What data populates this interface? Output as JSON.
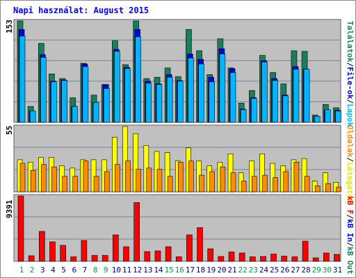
{
  "title": "Napi használat: August 2015",
  "colors": {
    "background": "#c0c0c0",
    "hits": "#1c7d5e",
    "files": "#0000d8",
    "pages": "#00b4ff",
    "visits": "#ffff00",
    "sites": "#ff8c00",
    "kbin": "#ff0000",
    "weekend_label": "#00a040",
    "weekday_label": "#000080"
  },
  "chart_data": [
    {
      "type": "bar",
      "panel": "top",
      "scale_max_label": "153",
      "right_label_parts": [
        "Találatok",
        "/",
        "File-ok",
        "/",
        "Lapok"
      ],
      "ylim": [
        0,
        153
      ],
      "categories": [
        "1",
        "2",
        "3",
        "4",
        "5",
        "6",
        "7",
        "8",
        "9",
        "10",
        "11",
        "12",
        "13",
        "14",
        "15",
        "16",
        "17",
        "18",
        "19",
        "20",
        "21",
        "22",
        "23",
        "24",
        "25",
        "26",
        "27",
        "28",
        "29",
        "30",
        "31"
      ],
      "weekend_days": [
        "1",
        "2",
        "8",
        "9",
        "15",
        "16",
        "22",
        "23",
        "29",
        "30"
      ],
      "series": [
        {
          "name": "Találatok",
          "values": [
            153,
            24,
            119,
            73,
            66,
            37,
            89,
            41,
            57,
            123,
            87,
            153,
            66,
            68,
            82,
            69,
            140,
            108,
            72,
            126,
            82,
            29,
            48,
            101,
            75,
            58,
            108,
            107,
            11,
            27,
            22
          ]
        },
        {
          "name": "File-ok",
          "values": [
            140,
            17,
            102,
            62,
            64,
            24,
            88,
            30,
            57,
            110,
            83,
            140,
            62,
            58,
            72,
            63,
            103,
            95,
            68,
            111,
            81,
            20,
            37,
            93,
            66,
            41,
            84,
            80,
            9,
            19,
            18
          ]
        },
        {
          "name": "Lapok",
          "values": [
            130,
            17,
            98,
            61,
            63,
            24,
            84,
            30,
            51,
            107,
            81,
            129,
            59,
            57,
            68,
            62,
            97,
            88,
            61,
            103,
            75,
            19,
            36,
            91,
            63,
            40,
            80,
            80,
            9,
            19,
            17
          ]
        }
      ]
    },
    {
      "type": "bar",
      "panel": "middle",
      "scale_max_label": "55",
      "right_label_parts": [
        "Oldalak",
        "/",
        "Látogatók"
      ],
      "ylim": [
        0,
        55
      ],
      "categories": [
        "1",
        "2",
        "3",
        "4",
        "5",
        "6",
        "7",
        "8",
        "9",
        "10",
        "11",
        "12",
        "13",
        "14",
        "15",
        "16",
        "17",
        "18",
        "19",
        "20",
        "21",
        "22",
        "23",
        "24",
        "25",
        "26",
        "27",
        "28",
        "29",
        "30",
        "31"
      ],
      "series": [
        {
          "name": "Látogatók",
          "values": [
            27,
            25,
            29,
            29,
            22,
            20,
            27,
            27,
            27,
            46,
            55,
            49,
            39,
            34,
            33,
            26,
            37,
            26,
            22,
            25,
            32,
            16,
            26,
            32,
            24,
            22,
            27,
            28,
            9,
            16,
            8
          ]
        },
        {
          "name": "Oldalak",
          "values": [
            24,
            18,
            23,
            21,
            13,
            13,
            26,
            13,
            17,
            23,
            26,
            19,
            20,
            19,
            13,
            25,
            26,
            14,
            17,
            21,
            16,
            9,
            13,
            14,
            12,
            17,
            25,
            13,
            5,
            7,
            4
          ]
        }
      ]
    },
    {
      "type": "bar",
      "panel": "bottom",
      "scale_max_label": "9391",
      "right_label_parts": [
        "kB F",
        "/",
        "kB In",
        "/",
        "kB Out"
      ],
      "ylim": [
        0,
        9391
      ],
      "categories": [
        "1",
        "2",
        "3",
        "4",
        "5",
        "6",
        "7",
        "8",
        "9",
        "10",
        "11",
        "12",
        "13",
        "14",
        "15",
        "16",
        "17",
        "18",
        "19",
        "20",
        "21",
        "22",
        "23",
        "24",
        "25",
        "26",
        "27",
        "28",
        "29",
        "30",
        "31"
      ],
      "series": [
        {
          "name": "kB F",
          "values": [
            9391,
            800,
            4300,
            2800,
            2300,
            650,
            3000,
            850,
            850,
            3800,
            2100,
            8450,
            1400,
            1500,
            2100,
            650,
            3800,
            4850,
            1800,
            700,
            1350,
            1200,
            650,
            700,
            1050,
            750,
            650,
            2900,
            500,
            1200,
            1000
          ]
        }
      ]
    }
  ]
}
